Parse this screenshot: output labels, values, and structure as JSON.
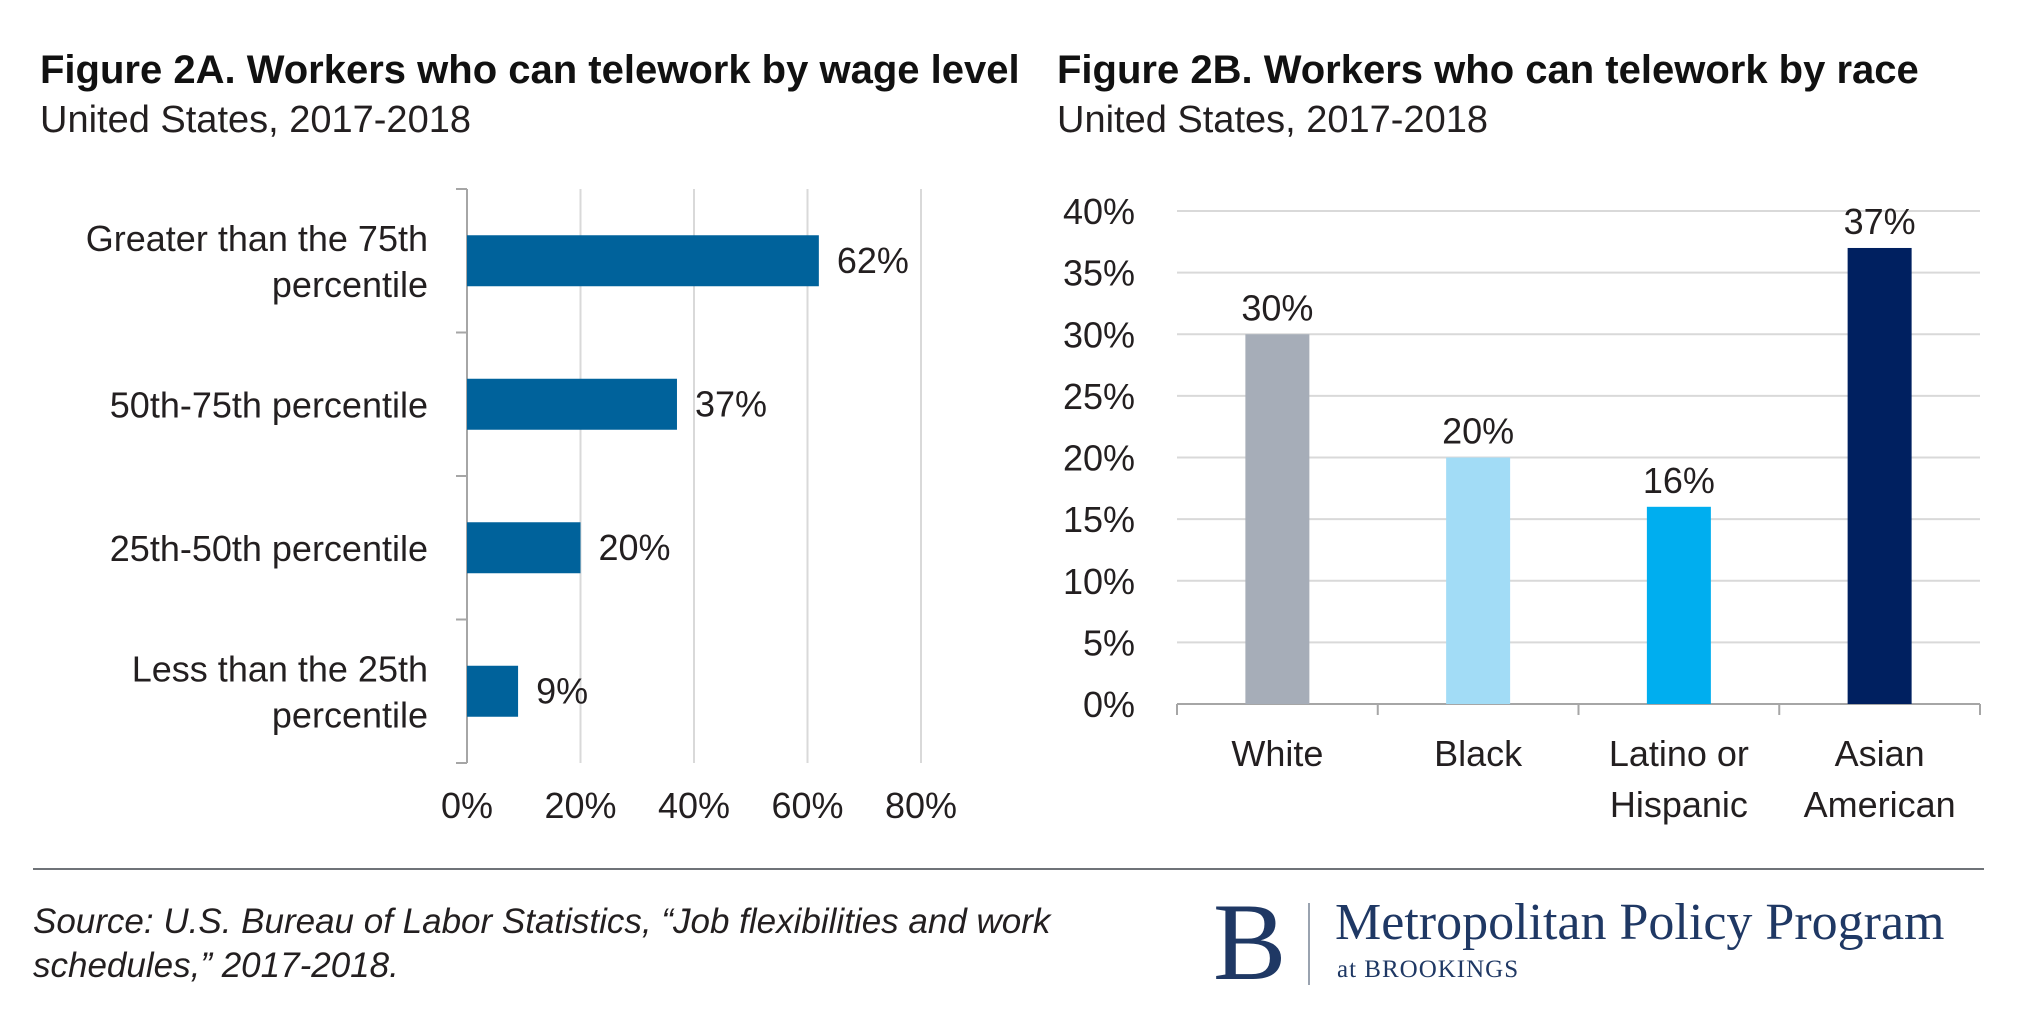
{
  "chart_data": [
    {
      "type": "bar",
      "orientation": "horizontal",
      "title": "Figure 2A. Workers who can telework by wage level",
      "subtitle": "United States, 2017-2018",
      "categories": [
        [
          "Greater than the 75th",
          "percentile"
        ],
        [
          "50th-75th percentile"
        ],
        [
          "25th-50th percentile"
        ],
        [
          "Less than the 25th",
          "percentile"
        ]
      ],
      "values": [
        62,
        37,
        20,
        9
      ],
      "value_labels": [
        "62%",
        "37%",
        "20%",
        "9%"
      ],
      "xlim": [
        0,
        80
      ],
      "xticks": [
        "0%",
        "20%",
        "40%",
        "60%",
        "80%"
      ],
      "grid": true,
      "bar_color": "#00629b"
    },
    {
      "type": "bar",
      "orientation": "vertical",
      "title": "Figure 2B. Workers who can telework by race",
      "subtitle": "United States, 2017-2018",
      "categories": [
        [
          "White"
        ],
        [
          "Black"
        ],
        [
          "Latino or",
          "Hispanic"
        ],
        [
          "Asian",
          "American"
        ]
      ],
      "values": [
        30,
        20,
        16,
        37
      ],
      "value_labels": [
        "30%",
        "20%",
        "16%",
        "37%"
      ],
      "colors": [
        "#a6adb8",
        "#a2dcf6",
        "#00aeef",
        "#002060"
      ],
      "ylim": [
        0,
        40
      ],
      "yticks": [
        "0%",
        "5%",
        "10%",
        "15%",
        "20%",
        "25%",
        "30%",
        "35%",
        "40%"
      ],
      "grid": true
    }
  ],
  "footer": {
    "source_line1": "Source: U.S. Bureau of Labor Statistics, “Job flexibilities and work",
    "source_line2": "schedules,” 2017-2018.",
    "logo_letter": "B",
    "logo_name": "Metropolitan Policy Program",
    "logo_sub": "at BROOKINGS"
  }
}
